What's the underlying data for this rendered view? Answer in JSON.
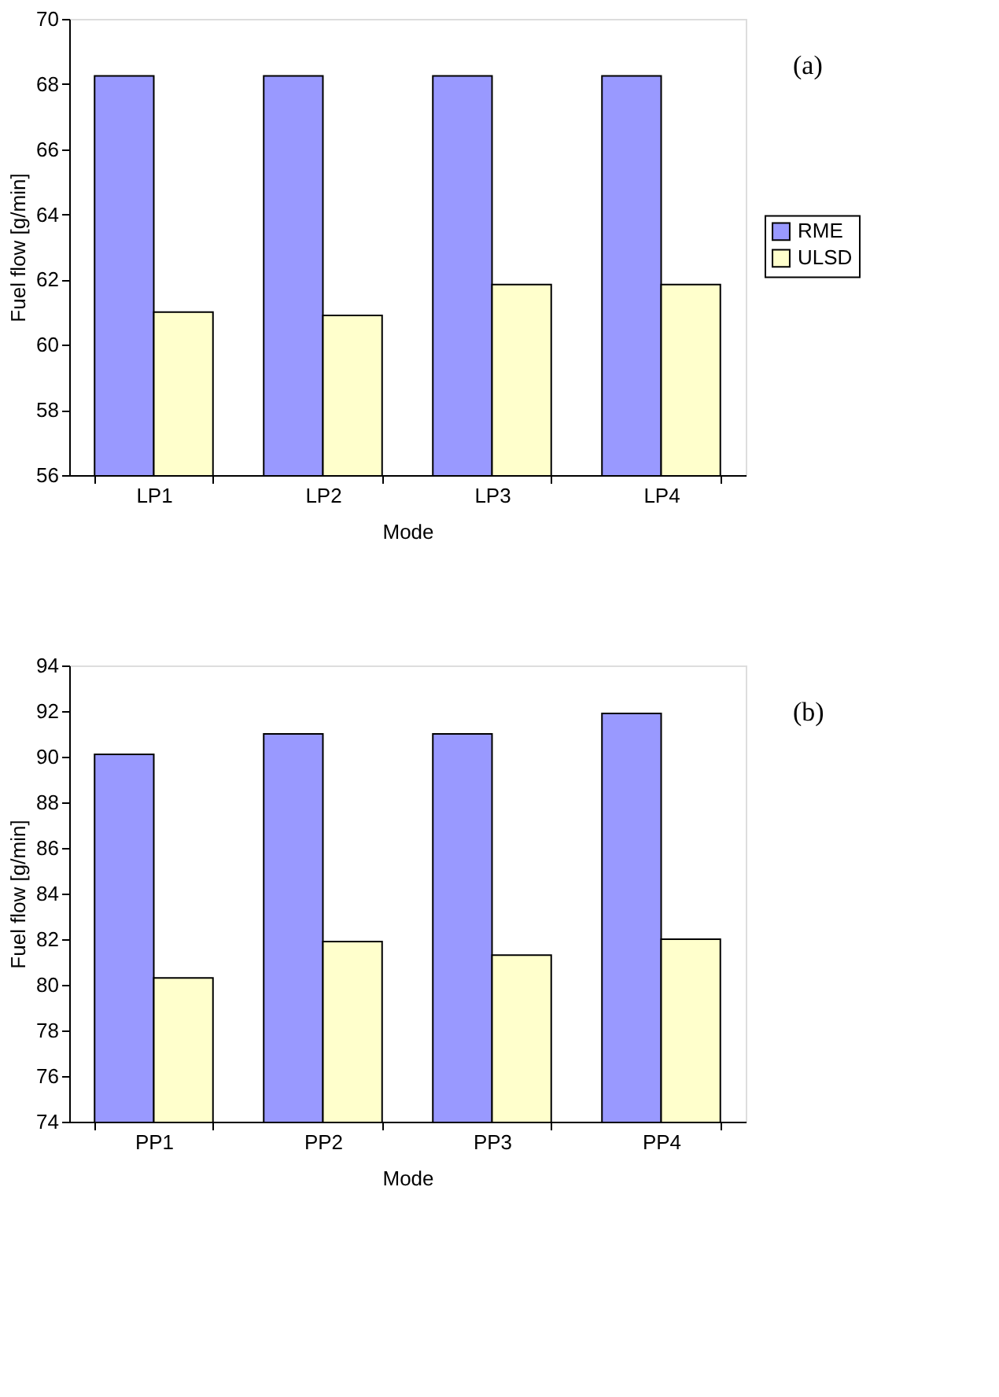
{
  "chart_data": [
    {
      "type": "bar",
      "categories": [
        "LP1",
        "LP2",
        "LP3",
        "LP4"
      ],
      "xlabel": "Mode",
      "ylabel": "Fuel flow [g/min]",
      "ylim": [
        56,
        70
      ],
      "yticks": [
        56,
        58,
        60,
        62,
        64,
        66,
        68,
        70
      ],
      "grid": false,
      "legend": "right",
      "annotations": [
        "(a)"
      ],
      "series": [
        {
          "name": "RME",
          "color": "#9999ff",
          "values": [
            68.25,
            68.25,
            68.25,
            68.25
          ]
        },
        {
          "name": "ULSD",
          "color": "#ffffcc",
          "values": [
            61.0,
            60.9,
            61.85,
            61.85
          ]
        }
      ]
    },
    {
      "type": "bar",
      "categories": [
        "PP1",
        "PP2",
        "PP3",
        "PP4"
      ],
      "xlabel": "Mode",
      "ylabel": "Fuel flow [g/min]",
      "ylim": [
        74,
        94
      ],
      "yticks": [
        74,
        76,
        78,
        80,
        82,
        84,
        86,
        88,
        90,
        92,
        94
      ],
      "grid": false,
      "legend": "right",
      "annotations": [
        "(b)"
      ],
      "series": [
        {
          "name": "RME",
          "color": "#9999ff",
          "values": [
            90.1,
            91.0,
            91.0,
            91.9
          ]
        },
        {
          "name": "ULSD",
          "color": "#ffffcc",
          "values": [
            80.3,
            81.9,
            81.3,
            82.0
          ]
        }
      ]
    }
  ]
}
